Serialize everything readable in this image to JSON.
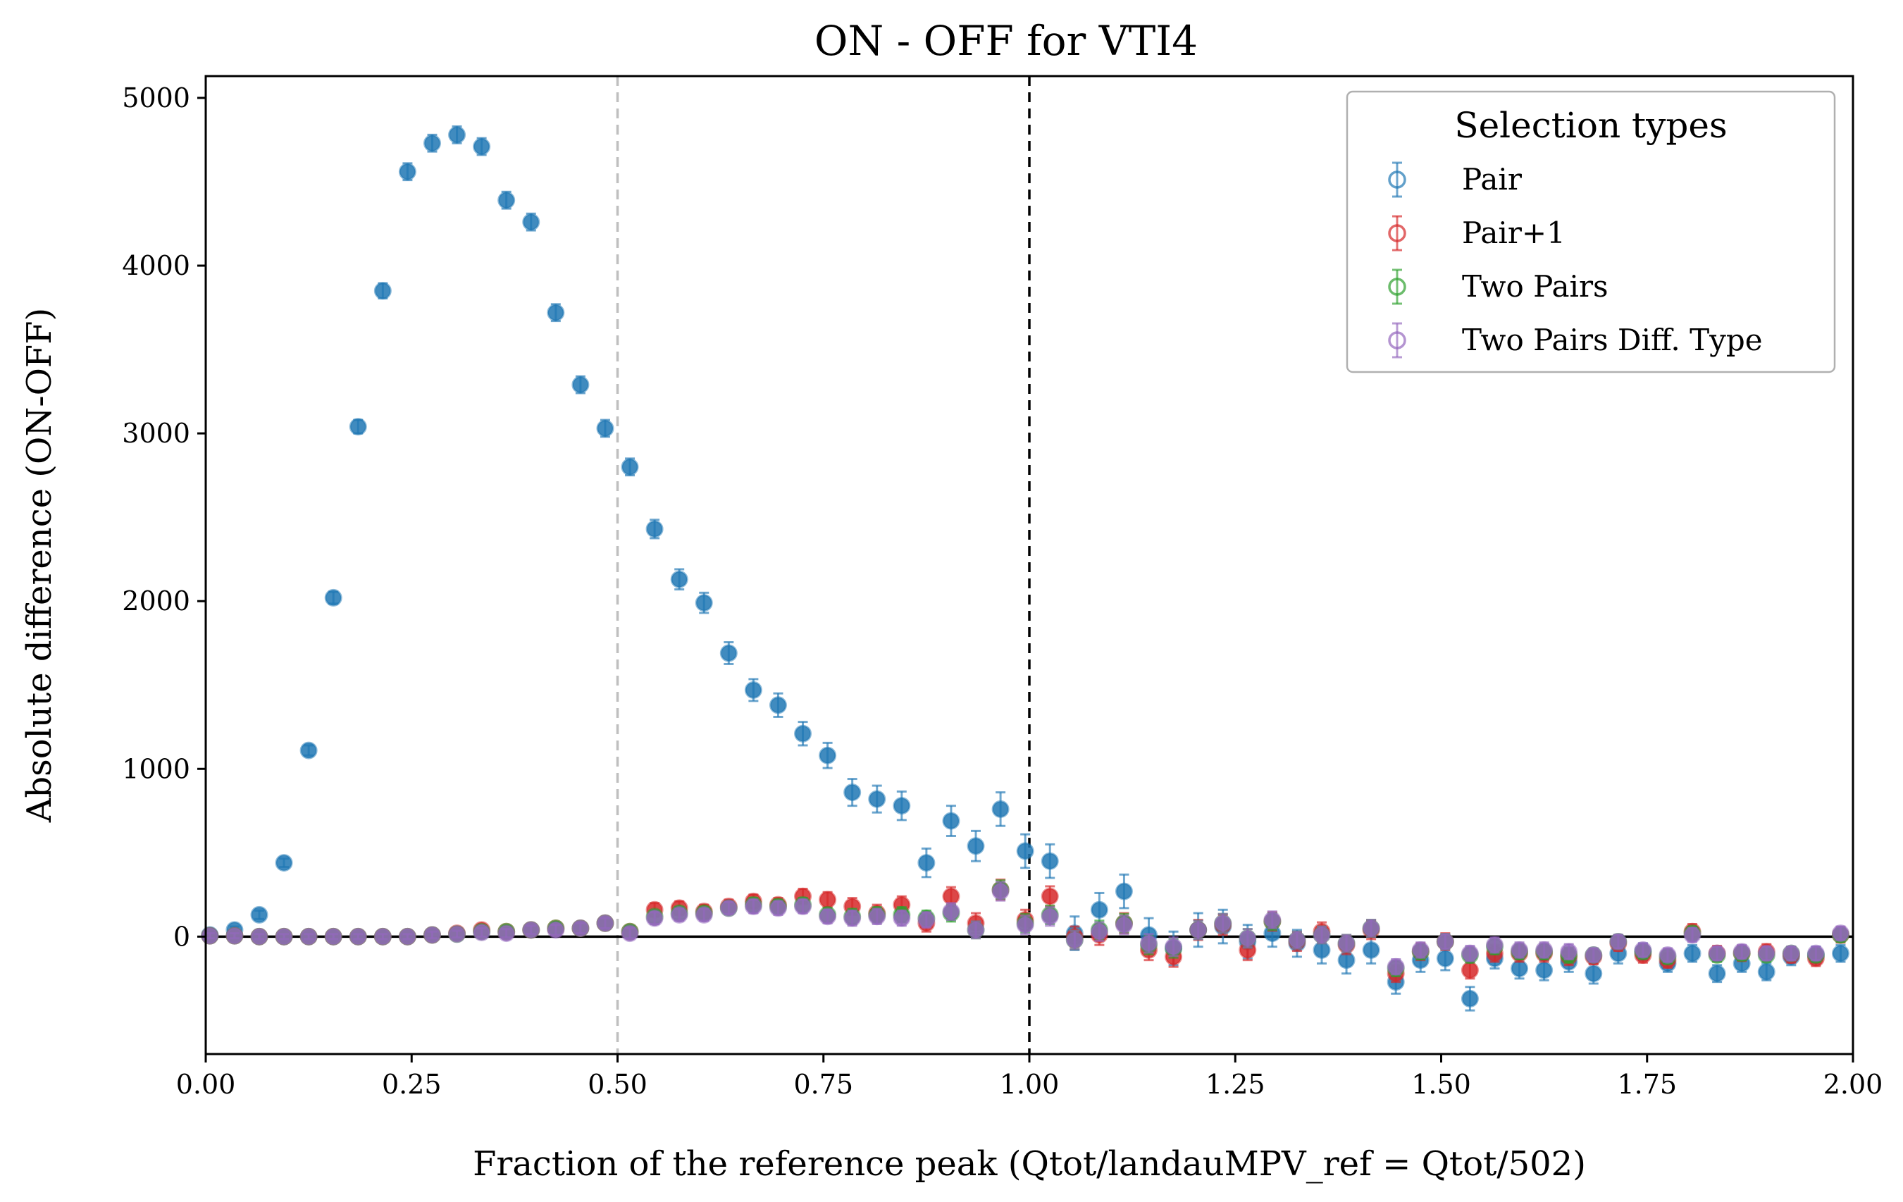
{
  "chart_data": {
    "type": "scatter",
    "title": "ON - OFF for VTI4",
    "xlabel": "Fraction of the reference peak (Qtot/landauMPV_ref = Qtot/502)",
    "ylabel": "Absolute difference (ON-OFF)",
    "xlim": [
      0,
      2
    ],
    "ylim": [
      -700,
      5130
    ],
    "xticks": [
      "0.00",
      "0.25",
      "0.50",
      "0.75",
      "1.00",
      "1.25",
      "1.50",
      "1.75",
      "2.00"
    ],
    "yticks": [
      "0",
      "1000",
      "2000",
      "3000",
      "4000",
      "5000"
    ],
    "reference_lines": [
      {
        "x": 0.5,
        "style": "dashed",
        "color": "#bfbfbf"
      },
      {
        "x": 1.0,
        "style": "dashed",
        "color": "#000000"
      },
      {
        "y": 0,
        "style": "solid",
        "color": "#000000"
      }
    ],
    "legend": {
      "title": "Selection types",
      "position": "top-right"
    },
    "x": [
      0.005,
      0.035,
      0.065,
      0.095,
      0.125,
      0.155,
      0.185,
      0.215,
      0.245,
      0.275,
      0.305,
      0.335,
      0.365,
      0.395,
      0.425,
      0.455,
      0.485,
      0.515,
      0.545,
      0.575,
      0.605,
      0.635,
      0.665,
      0.695,
      0.725,
      0.755,
      0.785,
      0.815,
      0.845,
      0.875,
      0.905,
      0.935,
      0.965,
      0.995,
      1.025,
      1.055,
      1.085,
      1.115,
      1.145,
      1.175,
      1.205,
      1.235,
      1.265,
      1.295,
      1.325,
      1.355,
      1.385,
      1.415,
      1.445,
      1.475,
      1.505,
      1.535,
      1.565,
      1.595,
      1.625,
      1.655,
      1.685,
      1.715,
      1.745,
      1.775,
      1.805,
      1.835,
      1.865,
      1.895,
      1.925,
      1.955,
      1.985
    ],
    "series": [
      {
        "name": "Pair",
        "color": "#1f77b4",
        "values": [
          10,
          40,
          130,
          440,
          1110,
          2020,
          3040,
          3850,
          4560,
          4730,
          4780,
          4710,
          4390,
          4260,
          3720,
          3290,
          3030,
          2800,
          2430,
          2130,
          1990,
          1690,
          1470,
          1380,
          1210,
          1080,
          860,
          820,
          780,
          440,
          690,
          540,
          760,
          510,
          450,
          20,
          160,
          270,
          10,
          -70,
          40,
          60,
          -30,
          20,
          -40,
          -80,
          -140,
          -80,
          -270,
          -140,
          -130,
          -370,
          -130,
          -190,
          -200,
          -150,
          -220,
          -100,
          -90,
          -160,
          -100,
          -220,
          -160,
          -210,
          -120,
          -110,
          -100
        ],
        "errors": [
          15,
          20,
          25,
          25,
          30,
          35,
          40,
          45,
          50,
          50,
          50,
          50,
          50,
          50,
          50,
          50,
          50,
          50,
          55,
          60,
          60,
          65,
          65,
          70,
          70,
          75,
          80,
          80,
          85,
          85,
          90,
          90,
          100,
          100,
          100,
          100,
          100,
          100,
          100,
          100,
          100,
          100,
          100,
          80,
          80,
          80,
          80,
          80,
          70,
          70,
          70,
          70,
          60,
          60,
          60,
          60,
          60,
          60,
          50,
          50,
          50,
          50,
          50,
          50,
          50,
          50,
          50
        ]
      },
      {
        "name": "Pair+1",
        "color": "#d62728",
        "values": [
          5,
          5,
          0,
          0,
          0,
          0,
          0,
          0,
          0,
          10,
          20,
          40,
          30,
          40,
          50,
          50,
          80,
          30,
          160,
          170,
          150,
          180,
          210,
          190,
          240,
          220,
          180,
          140,
          190,
          80,
          240,
          80,
          280,
          100,
          240,
          0,
          10,
          80,
          -80,
          -120,
          40,
          70,
          -80,
          90,
          -30,
          30,
          -50,
          40,
          -220,
          -90,
          -30,
          -200,
          -100,
          -100,
          -100,
          -120,
          -120,
          -40,
          -110,
          -140,
          30,
          -100,
          -100,
          -90,
          -110,
          -130,
          10
        ],
        "errors": [
          15,
          15,
          15,
          15,
          15,
          15,
          15,
          15,
          15,
          20,
          20,
          25,
          25,
          25,
          30,
          30,
          30,
          30,
          40,
          40,
          40,
          40,
          40,
          40,
          45,
          45,
          50,
          50,
          50,
          50,
          55,
          60,
          60,
          60,
          60,
          60,
          60,
          60,
          60,
          60,
          60,
          60,
          60,
          55,
          55,
          55,
          55,
          55,
          50,
          50,
          50,
          50,
          50,
          50,
          50,
          50,
          45,
          45,
          45,
          45,
          45,
          45,
          45,
          45,
          45,
          45,
          45
        ]
      },
      {
        "name": "Two Pairs",
        "color": "#2ca02c",
        "values": [
          5,
          5,
          0,
          0,
          0,
          0,
          0,
          0,
          0,
          10,
          15,
          30,
          30,
          40,
          50,
          50,
          80,
          30,
          120,
          140,
          140,
          170,
          190,
          180,
          190,
          130,
          120,
          130,
          130,
          110,
          140,
          40,
          280,
          80,
          130,
          -20,
          40,
          80,
          -50,
          -70,
          40,
          80,
          -10,
          90,
          -20,
          10,
          -40,
          50,
          -190,
          -90,
          -30,
          -110,
          -60,
          -90,
          -90,
          -110,
          -110,
          -30,
          -90,
          -120,
          20,
          -110,
          -100,
          -110,
          -100,
          -110,
          10
        ],
        "errors": [
          15,
          15,
          15,
          15,
          15,
          15,
          15,
          15,
          15,
          20,
          20,
          25,
          25,
          25,
          30,
          30,
          30,
          30,
          35,
          35,
          35,
          35,
          40,
          40,
          40,
          40,
          45,
          45,
          45,
          45,
          50,
          50,
          55,
          55,
          55,
          55,
          55,
          55,
          55,
          55,
          55,
          55,
          55,
          50,
          50,
          50,
          50,
          50,
          45,
          45,
          45,
          45,
          45,
          45,
          45,
          45,
          40,
          40,
          40,
          40,
          40,
          40,
          40,
          40,
          40,
          40,
          40
        ]
      },
      {
        "name": "Two Pairs Diff. Type",
        "color": "#9467bd",
        "values": [
          5,
          5,
          0,
          0,
          0,
          0,
          0,
          0,
          0,
          10,
          15,
          25,
          20,
          40,
          40,
          50,
          80,
          20,
          110,
          130,
          130,
          170,
          180,
          170,
          180,
          120,
          110,
          120,
          110,
          100,
          150,
          40,
          270,
          70,
          120,
          -20,
          30,
          70,
          -40,
          -60,
          40,
          80,
          -10,
          100,
          -20,
          10,
          -40,
          50,
          -180,
          -80,
          -30,
          -100,
          -50,
          -80,
          -80,
          -90,
          -110,
          -30,
          -80,
          -110,
          10,
          -100,
          -90,
          -100,
          -100,
          -100,
          20
        ],
        "errors": [
          15,
          15,
          15,
          15,
          15,
          15,
          15,
          15,
          15,
          20,
          20,
          25,
          25,
          25,
          30,
          30,
          30,
          30,
          35,
          35,
          35,
          35,
          40,
          40,
          40,
          40,
          45,
          45,
          45,
          45,
          50,
          50,
          55,
          55,
          55,
          55,
          55,
          55,
          55,
          55,
          55,
          55,
          55,
          50,
          50,
          50,
          50,
          50,
          45,
          45,
          45,
          45,
          45,
          45,
          45,
          45,
          40,
          40,
          40,
          40,
          40,
          40,
          40,
          40,
          40,
          40,
          40
        ]
      }
    ]
  }
}
